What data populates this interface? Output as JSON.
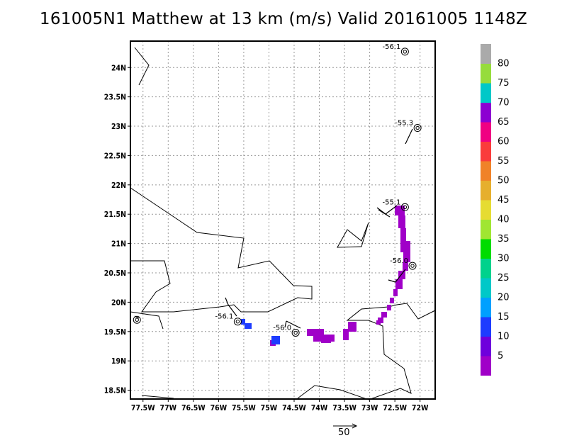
{
  "title": "161005N1 Matthew at 13 km (m/s) Valid 20161005 1148Z",
  "map": {
    "lon_min": -77.75,
    "lon_max": -71.7,
    "lat_min": 18.35,
    "lat_max": 24.45,
    "lon_ticks": [
      -77.5,
      -77,
      -76.5,
      -76,
      -75.5,
      -75,
      -74.5,
      -74,
      -73.5,
      -73,
      -72.5,
      -72
    ],
    "lon_labels": [
      "77.5W",
      "77W",
      "76.5W",
      "76W",
      "75.5W",
      "75W",
      "74.5W",
      "74W",
      "73.5W",
      "73W",
      "72.5W",
      "72W"
    ],
    "lat_ticks": [
      18.5,
      19,
      19.5,
      20,
      20.5,
      21,
      21.5,
      22,
      22.5,
      23,
      23.5,
      24
    ],
    "lat_labels": [
      "18.5N",
      "19N",
      "19.5N",
      "20N",
      "20.5N",
      "21N",
      "21.5N",
      "22N",
      "22.5N",
      "23N",
      "23.5N",
      "24N"
    ],
    "grid": true
  },
  "observations": [
    {
      "label": "-56.1",
      "lon": -72.3,
      "lat": 24.27
    },
    {
      "label": "-55.3",
      "lon": -72.05,
      "lat": 22.97
    },
    {
      "label": "-55.1",
      "lon": -72.3,
      "lat": 21.62
    },
    {
      "label": "-56.0",
      "lon": -72.15,
      "lat": 20.62
    },
    {
      "label": "-56.1",
      "lon": -75.62,
      "lat": 19.67
    },
    {
      "label": "-56.0",
      "lon": -74.47,
      "lat": 19.48
    },
    {
      "label": "",
      "lon": -77.62,
      "lat": 19.7
    }
  ],
  "colorbar": {
    "labels": [
      "5",
      "10",
      "15",
      "20",
      "25",
      "30",
      "35",
      "40",
      "45",
      "50",
      "55",
      "60",
      "65",
      "70",
      "75",
      "80"
    ],
    "colors": [
      "#a000c8",
      "#6e00dc",
      "#1e3cff",
      "#00a0ff",
      "#00c8c8",
      "#00d28c",
      "#00dc00",
      "#a0e632",
      "#e6dc32",
      "#e6af2d",
      "#f08228",
      "#fa3c3c",
      "#f00082",
      "#8c00d2",
      "#00c8c8",
      "#96dc3c",
      "#aaaaaa"
    ]
  },
  "scale_vector": {
    "label": "50"
  }
}
